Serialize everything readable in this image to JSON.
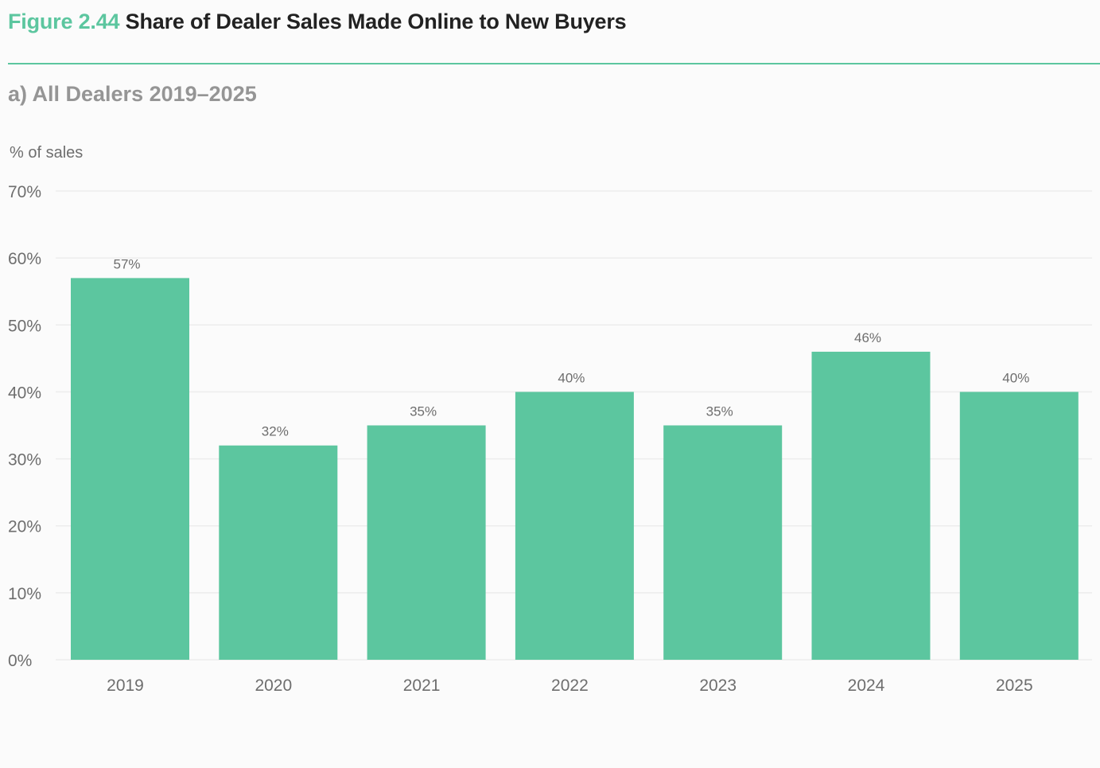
{
  "header": {
    "figure_number": "Figure 2.44",
    "title": "Share of Dealer Sales Made Online to New Buyers",
    "subtitle": "a) All Dealers 2019–2025"
  },
  "colors": {
    "accent": "#5cc69f",
    "bar": "#5cc69f",
    "grid": "#ececec"
  },
  "chart_data": {
    "type": "bar",
    "title": "Share of Dealer Sales Made Online to New Buyers",
    "subtitle": "a) All Dealers 2019–2025",
    "xlabel": "",
    "ylabel": "% of sales",
    "categories": [
      "2019",
      "2020",
      "2021",
      "2022",
      "2023",
      "2024",
      "2025"
    ],
    "values": [
      57,
      32,
      35,
      40,
      35,
      46,
      40
    ],
    "data_labels": [
      "57%",
      "32%",
      "35%",
      "40%",
      "35%",
      "46%",
      "40%"
    ],
    "ylim": [
      0,
      70
    ],
    "yticks": [
      0,
      10,
      20,
      30,
      40,
      50,
      60,
      70
    ],
    "ytick_labels": [
      "0%",
      "10%",
      "20%",
      "30%",
      "40%",
      "50%",
      "60%",
      "70%"
    ],
    "grid": true,
    "legend": "none"
  }
}
